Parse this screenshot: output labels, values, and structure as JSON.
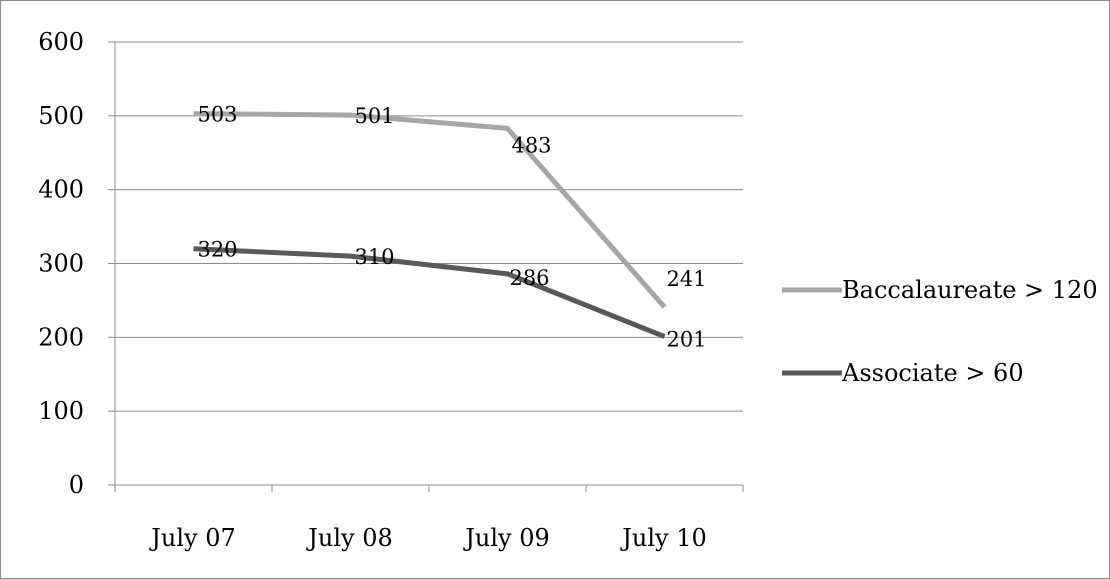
{
  "chart_data": {
    "type": "line",
    "title": "",
    "xlabel": "",
    "ylabel": "",
    "categories": [
      "July 07",
      "July 08",
      "July 09",
      "July 10"
    ],
    "ylim": [
      0,
      600
    ],
    "yticks": [
      "0",
      "100",
      "200",
      "300",
      "400",
      "500",
      "600"
    ],
    "grid": true,
    "legend_position": "right",
    "series": [
      {
        "name": "Baccalaureate > 120",
        "values": [
          503,
          501,
          483,
          241
        ],
        "labels": [
          "503",
          "501",
          "483",
          "241"
        ],
        "color": "#a6a6a6"
      },
      {
        "name": "Associate > 60",
        "values": [
          320,
          310,
          286,
          201
        ],
        "labels": [
          "320",
          "310",
          "286",
          "201"
        ],
        "color": "#595959"
      }
    ]
  }
}
